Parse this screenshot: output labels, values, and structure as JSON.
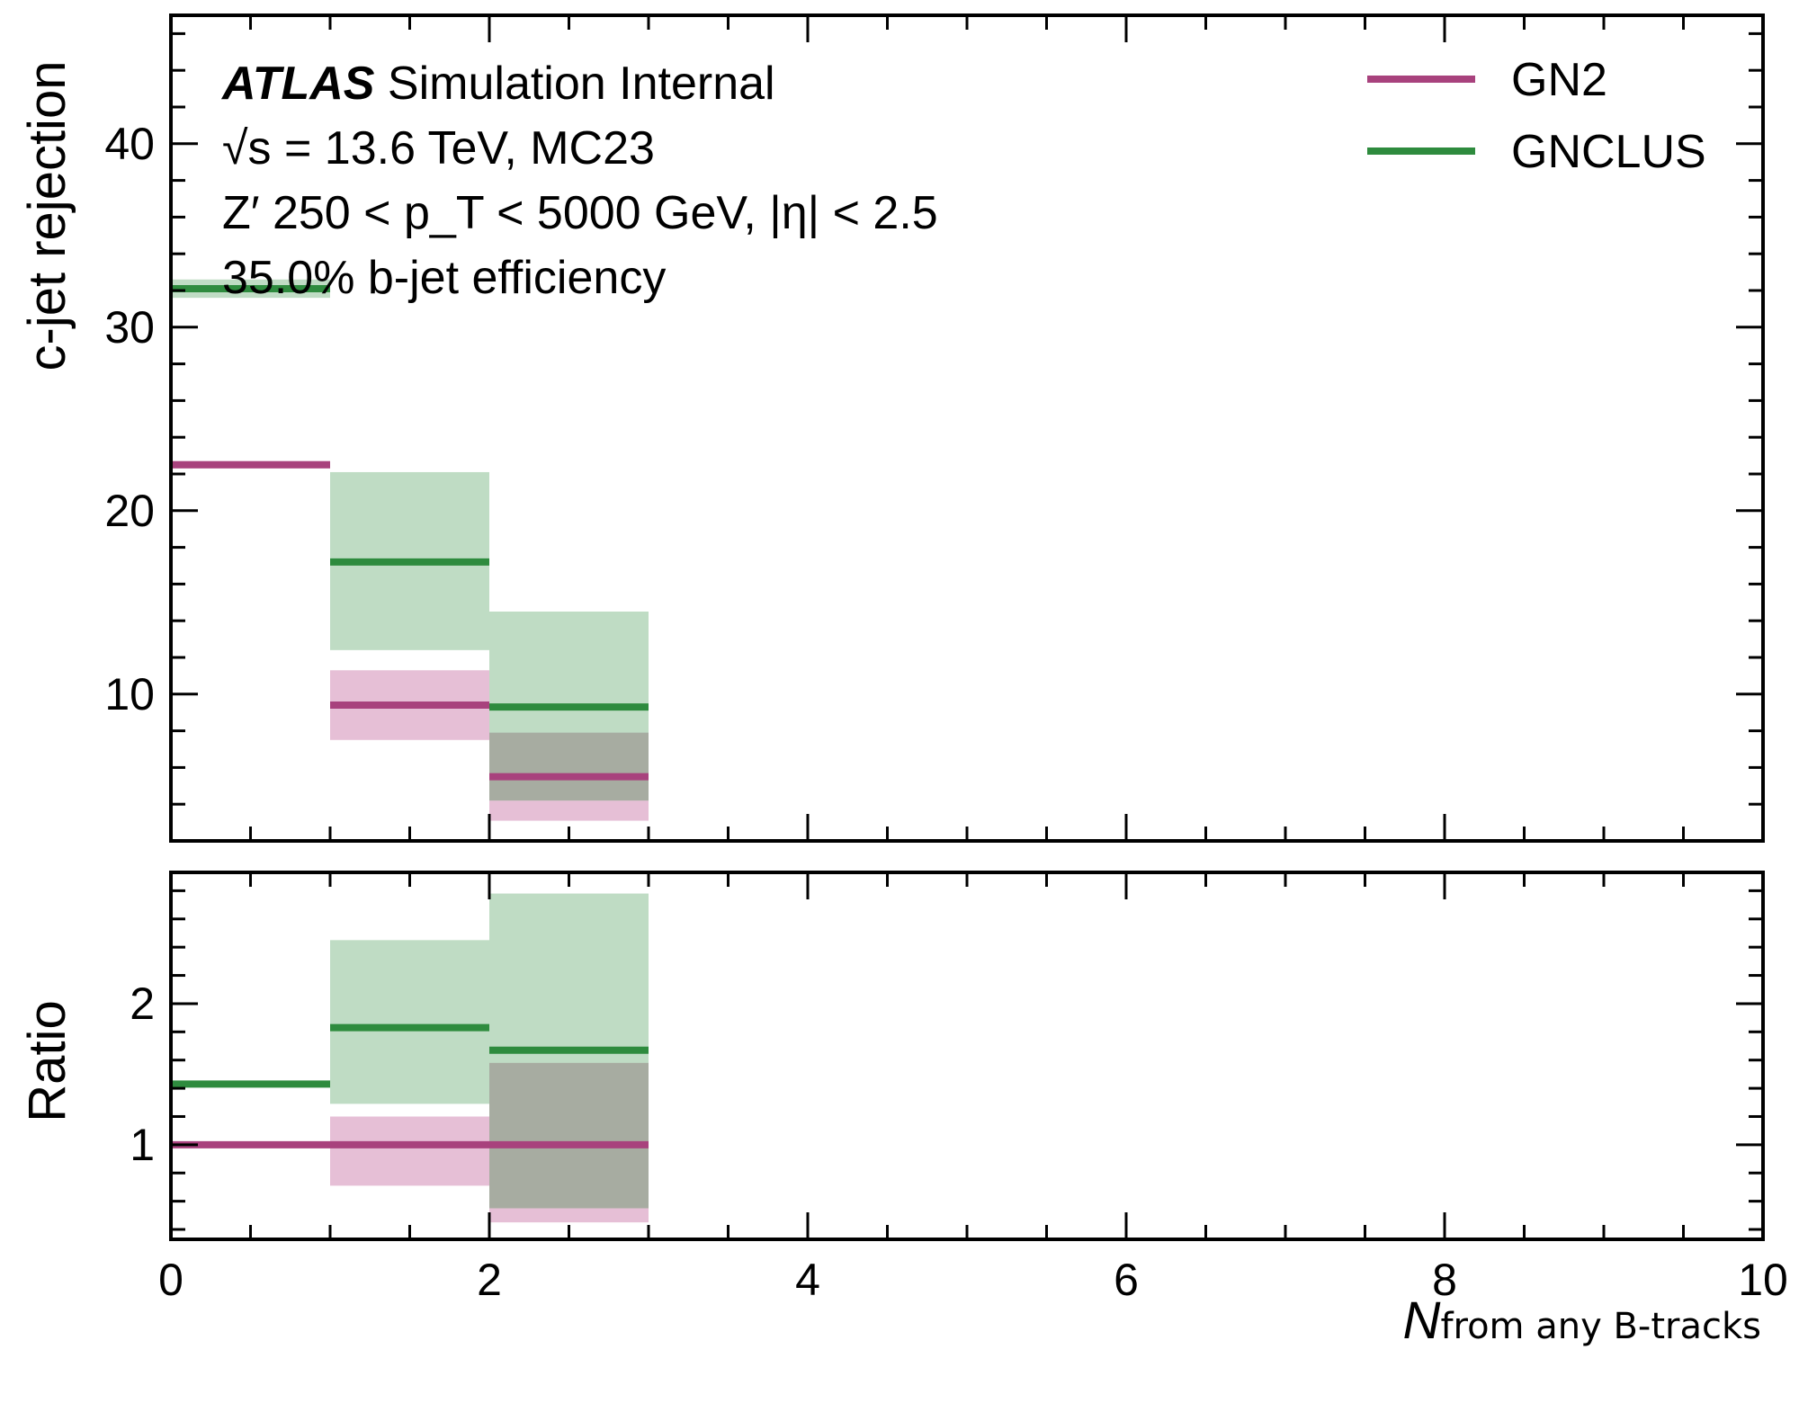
{
  "colors": {
    "gn2": "#a8427d",
    "gnclus": "#2e8b3e",
    "gn2_band": "#e6bfd6",
    "gnclus_band": "#bfdcc4",
    "overlap_band": "#a7aca1"
  },
  "annotations": {
    "atlas": "ATLAS",
    "atlas_rest": " Simulation Internal",
    "line2": "√s = 13.6 TeV, MC23",
    "line3": "Z′ 250 < p_T < 5000 GeV, |η| < 2.5",
    "line4": "35.0% b-jet efficiency"
  },
  "legend": {
    "gn2": "GN2",
    "gnclus": "GNCLUS"
  },
  "chart_data": [
    {
      "type": "step",
      "panel": "main",
      "ylabel": "c-jet rejection",
      "xlim": [
        0,
        10
      ],
      "ylim": [
        2,
        47
      ],
      "yticks": [
        10,
        20,
        30,
        40
      ],
      "bins": [
        [
          0,
          1
        ],
        [
          1,
          2
        ],
        [
          2,
          3
        ]
      ],
      "series": [
        {
          "name": "GN2",
          "values": [
            22.5,
            9.4,
            5.5
          ],
          "err_low": [
            22.3,
            7.5,
            3.1
          ],
          "err_high": [
            22.7,
            11.3,
            7.9
          ]
        },
        {
          "name": "GNCLUS",
          "values": [
            32.1,
            17.2,
            9.3
          ],
          "err_low": [
            31.6,
            12.4,
            4.2
          ],
          "err_high": [
            32.6,
            22.1,
            14.5
          ]
        }
      ]
    },
    {
      "type": "step",
      "panel": "ratio",
      "ylabel": "Ratio",
      "xlabel_main": "N",
      "xlabel_sub": "from any B-tracks",
      "xlim": [
        0,
        10
      ],
      "ylim": [
        0.33,
        2.93
      ],
      "xticks": [
        0,
        2,
        4,
        6,
        8,
        10
      ],
      "yticks": [
        1,
        2
      ],
      "bins": [
        [
          0,
          1
        ],
        [
          1,
          2
        ],
        [
          2,
          3
        ]
      ],
      "series": [
        {
          "name": "GN2",
          "values": [
            1.0,
            1.0,
            1.0
          ],
          "err_low": [
            0.99,
            0.71,
            0.45
          ],
          "err_high": [
            1.01,
            1.2,
            1.58
          ]
        },
        {
          "name": "GNCLUS",
          "values": [
            1.43,
            1.83,
            1.67
          ],
          "err_low": [
            1.42,
            1.29,
            0.55
          ],
          "err_high": [
            1.44,
            2.45,
            2.78
          ]
        }
      ]
    }
  ]
}
